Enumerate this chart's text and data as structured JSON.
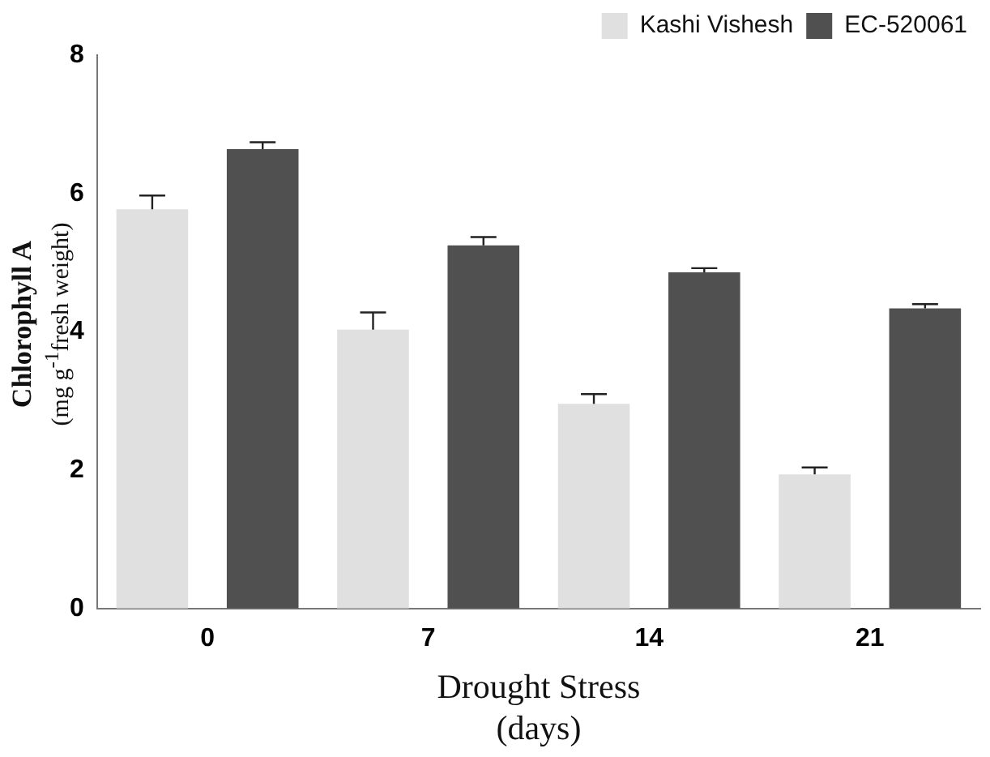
{
  "chart_data": {
    "type": "bar",
    "xlabel": "Drought Stress\n(days)",
    "ylabel": "Chlorophyll A\n(mg g$^{-1}$fresh weight)",
    "categories": [
      "0",
      "7",
      "14",
      "21"
    ],
    "series": [
      {
        "name": "Kashi Vishesh",
        "color": "#e0e0e0",
        "values": [
          5.77,
          4.03,
          2.96,
          1.94
        ],
        "errors": [
          0.2,
          0.25,
          0.14,
          0.1
        ]
      },
      {
        "name": "EC-520061",
        "color": "#505050",
        "values": [
          6.64,
          5.25,
          4.86,
          4.34
        ],
        "errors": [
          0.1,
          0.12,
          0.06,
          0.06
        ]
      }
    ],
    "ylim": [
      0,
      8
    ],
    "yticks": [
      0,
      2,
      4,
      6,
      8
    ],
    "grid": false,
    "legend": "top right"
  }
}
